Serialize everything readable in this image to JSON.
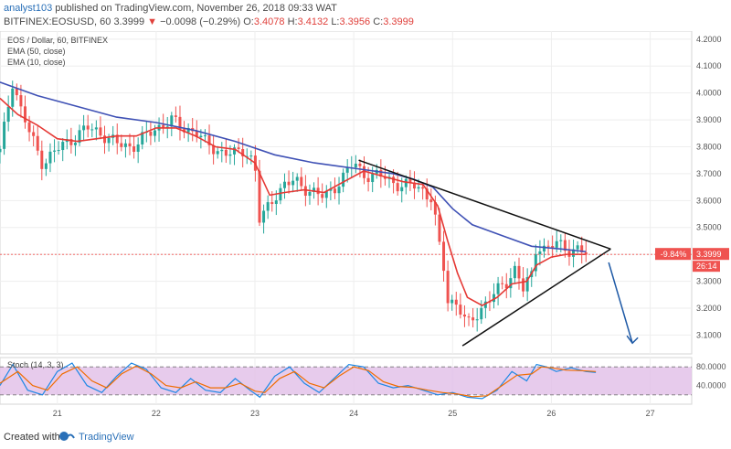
{
  "header": {
    "author": "analyst103",
    "published_text": "published on TradingView.com, November 26, 2018 09:33 WAT",
    "symbol": "BITFINEX:EOSUSD, 60",
    "last": "3.3999",
    "arrow": "▼",
    "change": "−0.0098 (−0.29%)",
    "o_label": "O:",
    "o_value": "3.4078",
    "h_label": "H:",
    "h_value": "3.4132",
    "l_label": "L:",
    "l_value": "3.3956",
    "c_label": "C:",
    "c_value": "3.3999"
  },
  "footer": {
    "created_with": "Created with",
    "brand": "TradingView"
  },
  "colors": {
    "up": "#26a69a",
    "down": "#ef5350",
    "ema50": "#3f51b5",
    "ema10": "#e53935",
    "stoch_fill": "#e1bee7"
  },
  "chart_data": {
    "type": "candlestick",
    "title": "EOS / Dollar, 60, BITFINEX",
    "legend": [
      "EMA (50, close)",
      "EMA (10, close)"
    ],
    "x_ticks": [
      "21",
      "22",
      "23",
      "24",
      "25",
      "26",
      "27"
    ],
    "y_ticks": [
      "4.2000",
      "4.1000",
      "4.0000",
      "3.9000",
      "3.8000",
      "3.7000",
      "3.6000",
      "3.5000",
      "3.4000",
      "3.3000",
      "3.2000",
      "3.1000"
    ],
    "ylim": [
      3.03,
      4.23
    ],
    "xlim": [
      20.42,
      27.42
    ],
    "price_label": "3.3999",
    "pct_label": "-9.84%",
    "countdown_label": "26:14",
    "close_path": [
      [
        20.42,
        3.78
      ],
      [
        20.55,
        4.05
      ],
      [
        20.62,
        3.95
      ],
      [
        20.72,
        3.85
      ],
      [
        20.85,
        3.74
      ],
      [
        21.0,
        3.79
      ],
      [
        21.15,
        3.83
      ],
      [
        21.3,
        3.87
      ],
      [
        21.45,
        3.85
      ],
      [
        21.6,
        3.81
      ],
      [
        21.75,
        3.8
      ],
      [
        21.9,
        3.84
      ],
      [
        22.05,
        3.88
      ],
      [
        22.15,
        3.9
      ],
      [
        22.25,
        3.87
      ],
      [
        22.4,
        3.86
      ],
      [
        22.5,
        3.81
      ],
      [
        22.6,
        3.79
      ],
      [
        22.7,
        3.78
      ],
      [
        22.8,
        3.77
      ],
      [
        22.9,
        3.79
      ],
      [
        23.0,
        3.74
      ],
      [
        23.03,
        3.52
      ],
      [
        23.1,
        3.55
      ],
      [
        23.2,
        3.62
      ],
      [
        23.3,
        3.66
      ],
      [
        23.4,
        3.67
      ],
      [
        23.5,
        3.65
      ],
      [
        23.6,
        3.63
      ],
      [
        23.7,
        3.61
      ],
      [
        23.8,
        3.65
      ],
      [
        23.9,
        3.69
      ],
      [
        24.0,
        3.74
      ],
      [
        24.1,
        3.7
      ],
      [
        24.2,
        3.69
      ],
      [
        24.3,
        3.69
      ],
      [
        24.4,
        3.67
      ],
      [
        24.5,
        3.65
      ],
      [
        24.6,
        3.66
      ],
      [
        24.7,
        3.64
      ],
      [
        24.8,
        3.6
      ],
      [
        24.85,
        3.45
      ],
      [
        24.9,
        3.38
      ],
      [
        24.95,
        3.23
      ],
      [
        25.05,
        3.22
      ],
      [
        25.15,
        3.13
      ],
      [
        25.25,
        3.18
      ],
      [
        25.35,
        3.23
      ],
      [
        25.45,
        3.26
      ],
      [
        25.55,
        3.3
      ],
      [
        25.65,
        3.36
      ],
      [
        25.7,
        3.26
      ],
      [
        25.8,
        3.32
      ],
      [
        25.85,
        3.44
      ],
      [
        25.95,
        3.42
      ],
      [
        26.05,
        3.44
      ],
      [
        26.15,
        3.42
      ],
      [
        26.25,
        3.42
      ],
      [
        26.35,
        3.4
      ]
    ],
    "ema50": [
      [
        20.42,
        4.04
      ],
      [
        20.8,
        3.99
      ],
      [
        21.2,
        3.95
      ],
      [
        21.6,
        3.91
      ],
      [
        22.0,
        3.89
      ],
      [
        22.4,
        3.86
      ],
      [
        22.8,
        3.82
      ],
      [
        23.2,
        3.77
      ],
      [
        23.6,
        3.74
      ],
      [
        24.0,
        3.72
      ],
      [
        24.4,
        3.7
      ],
      [
        24.6,
        3.68
      ],
      [
        24.8,
        3.65
      ],
      [
        25.0,
        3.57
      ],
      [
        25.2,
        3.51
      ],
      [
        25.5,
        3.47
      ],
      [
        25.8,
        3.43
      ],
      [
        26.1,
        3.42
      ],
      [
        26.35,
        3.41
      ]
    ],
    "ema10": [
      [
        20.42,
        3.98
      ],
      [
        20.6,
        3.92
      ],
      [
        20.8,
        3.88
      ],
      [
        21.0,
        3.83
      ],
      [
        21.2,
        3.82
      ],
      [
        21.4,
        3.83
      ],
      [
        21.6,
        3.84
      ],
      [
        21.8,
        3.84
      ],
      [
        22.0,
        3.87
      ],
      [
        22.2,
        3.87
      ],
      [
        22.4,
        3.84
      ],
      [
        22.6,
        3.8
      ],
      [
        22.8,
        3.79
      ],
      [
        23.0,
        3.74
      ],
      [
        23.15,
        3.62
      ],
      [
        23.3,
        3.63
      ],
      [
        23.5,
        3.64
      ],
      [
        23.7,
        3.63
      ],
      [
        23.9,
        3.67
      ],
      [
        24.1,
        3.71
      ],
      [
        24.3,
        3.69
      ],
      [
        24.5,
        3.67
      ],
      [
        24.7,
        3.66
      ],
      [
        24.85,
        3.58
      ],
      [
        24.95,
        3.45
      ],
      [
        25.05,
        3.33
      ],
      [
        25.15,
        3.24
      ],
      [
        25.3,
        3.21
      ],
      [
        25.45,
        3.24
      ],
      [
        25.6,
        3.29
      ],
      [
        25.75,
        3.3
      ],
      [
        25.85,
        3.36
      ],
      [
        26.0,
        3.39
      ],
      [
        26.15,
        3.4
      ],
      [
        26.35,
        3.4
      ]
    ],
    "trendlines": [
      {
        "name": "upper",
        "points": [
          [
            24.05,
            3.75
          ],
          [
            26.6,
            3.42
          ]
        ]
      },
      {
        "name": "lower",
        "points": [
          [
            25.1,
            3.06
          ],
          [
            26.6,
            3.42
          ]
        ]
      },
      {
        "name": "arrow",
        "points": [
          [
            26.58,
            3.37
          ],
          [
            26.82,
            3.07
          ]
        ]
      }
    ],
    "stochastic": {
      "label": "Stoch (14, 3, 3)",
      "y_ticks": [
        "80.0000",
        "40.0000"
      ],
      "ylim": [
        0,
        100
      ],
      "bands": [
        20,
        80
      ],
      "k": [
        [
          20.42,
          40
        ],
        [
          20.55,
          85
        ],
        [
          20.7,
          30
        ],
        [
          20.85,
          20
        ],
        [
          21.0,
          70
        ],
        [
          21.15,
          88
        ],
        [
          21.3,
          40
        ],
        [
          21.45,
          25
        ],
        [
          21.6,
          60
        ],
        [
          21.75,
          88
        ],
        [
          21.9,
          75
        ],
        [
          22.05,
          35
        ],
        [
          22.2,
          25
        ],
        [
          22.35,
          55
        ],
        [
          22.5,
          30
        ],
        [
          22.65,
          25
        ],
        [
          22.8,
          55
        ],
        [
          22.95,
          30
        ],
        [
          23.05,
          15
        ],
        [
          23.2,
          60
        ],
        [
          23.35,
          80
        ],
        [
          23.5,
          45
        ],
        [
          23.65,
          25
        ],
        [
          23.8,
          55
        ],
        [
          23.95,
          85
        ],
        [
          24.1,
          80
        ],
        [
          24.25,
          45
        ],
        [
          24.4,
          35
        ],
        [
          24.55,
          40
        ],
        [
          24.7,
          30
        ],
        [
          24.85,
          20
        ],
        [
          25.0,
          25
        ],
        [
          25.15,
          15
        ],
        [
          25.3,
          12
        ],
        [
          25.45,
          30
        ],
        [
          25.6,
          70
        ],
        [
          25.75,
          50
        ],
        [
          25.85,
          85
        ],
        [
          25.95,
          80
        ],
        [
          26.05,
          70
        ],
        [
          26.2,
          78
        ],
        [
          26.35,
          70
        ],
        [
          26.45,
          68
        ]
      ],
      "d": [
        [
          20.42,
          45
        ],
        [
          20.6,
          70
        ],
        [
          20.75,
          40
        ],
        [
          20.9,
          30
        ],
        [
          21.05,
          65
        ],
        [
          21.2,
          80
        ],
        [
          21.35,
          50
        ],
        [
          21.5,
          35
        ],
        [
          21.65,
          65
        ],
        [
          21.8,
          82
        ],
        [
          21.95,
          65
        ],
        [
          22.1,
          40
        ],
        [
          22.25,
          35
        ],
        [
          22.4,
          48
        ],
        [
          22.55,
          35
        ],
        [
          22.7,
          35
        ],
        [
          22.85,
          45
        ],
        [
          23.0,
          28
        ],
        [
          23.1,
          25
        ],
        [
          23.25,
          55
        ],
        [
          23.4,
          70
        ],
        [
          23.55,
          45
        ],
        [
          23.7,
          35
        ],
        [
          23.85,
          60
        ],
        [
          24.0,
          80
        ],
        [
          24.15,
          72
        ],
        [
          24.3,
          48
        ],
        [
          24.45,
          38
        ],
        [
          24.6,
          36
        ],
        [
          24.75,
          30
        ],
        [
          24.9,
          25
        ],
        [
          25.05,
          22
        ],
        [
          25.2,
          16
        ],
        [
          25.35,
          18
        ],
        [
          25.5,
          40
        ],
        [
          25.65,
          62
        ],
        [
          25.8,
          65
        ],
        [
          25.9,
          80
        ],
        [
          26.0,
          78
        ],
        [
          26.15,
          73
        ],
        [
          26.3,
          72
        ],
        [
          26.45,
          70
        ]
      ]
    }
  }
}
